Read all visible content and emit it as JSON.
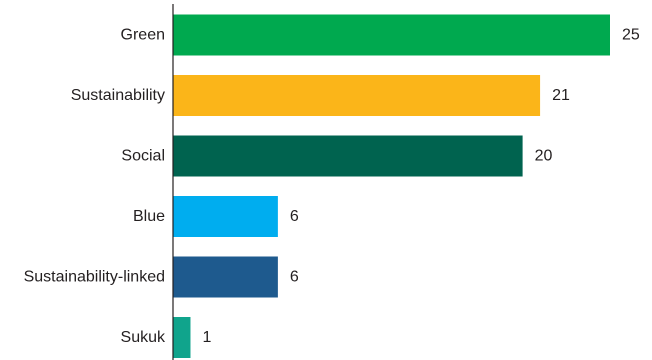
{
  "chart_data": {
    "type": "bar",
    "orientation": "horizontal",
    "title": "",
    "xlabel": "",
    "ylabel": "",
    "categories": [
      "Green",
      "Sustainability",
      "Social",
      "Blue",
      "Sustainability-linked",
      "Sukuk"
    ],
    "values": [
      25,
      21,
      20,
      6,
      6,
      1
    ],
    "colors": [
      "#00a94f",
      "#fbb519",
      "#00634f",
      "#00adef",
      "#1e5a8e",
      "#10a48c"
    ],
    "xlim": [
      0,
      25
    ],
    "grid": false,
    "legend": "none",
    "axis_color": "#231f20"
  }
}
